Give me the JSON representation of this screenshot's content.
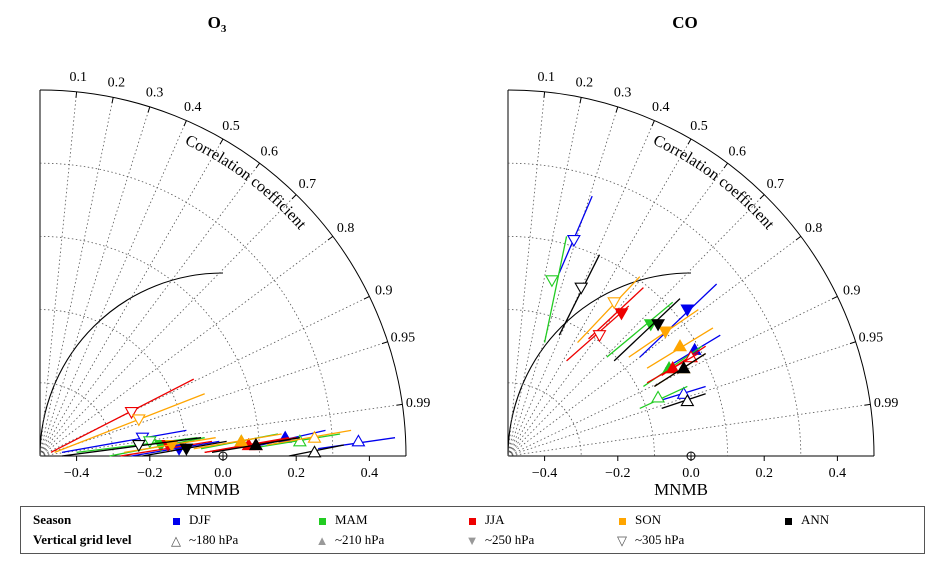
{
  "chart_data": [
    {
      "type": "scatter",
      "title": "O3",
      "xlabel": "MNMB",
      "arc_label": "Correlation coefficient",
      "xlim": [
        -0.5,
        0.5
      ],
      "x_ticks": [
        -0.4,
        -0.2,
        0.0,
        0.2,
        0.4
      ],
      "x_tick_labels": [
        "−0.4",
        "−0.2",
        "0.0",
        "0.2",
        "0.4"
      ],
      "correlation_ticks": [
        0.1,
        0.2,
        0.3,
        0.4,
        0.5,
        0.6,
        0.7,
        0.8,
        0.9,
        0.95,
        0.99
      ],
      "correlation_tick_labels": [
        "0.1",
        "0.2",
        "0.3",
        "0.4",
        "0.5",
        "0.6",
        "0.7",
        "0.8",
        "0.9",
        "0.95",
        "0.99"
      ],
      "reference_arc_radius": 0.5,
      "points": [
        {
          "season": "DJF",
          "level": "~180 hPa",
          "x": 0.37,
          "y": 0.04,
          "seg": [
            [
              0.26,
              0.02
            ],
            [
              0.47,
              0.05
            ]
          ]
        },
        {
          "season": "DJF",
          "level": "~210 hPa",
          "x": 0.17,
          "y": 0.05,
          "seg": [
            [
              0.06,
              0.02
            ],
            [
              0.28,
              0.07
            ]
          ]
        },
        {
          "season": "DJF",
          "level": "~250 hPa",
          "x": -0.12,
          "y": 0.02,
          "seg": [
            [
              -0.25,
              0.0
            ],
            [
              -0.01,
              0.04
            ]
          ]
        },
        {
          "season": "DJF",
          "level": "~305 hPa",
          "x": -0.22,
          "y": 0.05,
          "seg": [
            [
              -0.44,
              0.01
            ],
            [
              -0.1,
              0.07
            ]
          ]
        },
        {
          "season": "MAM",
          "level": "~180 hPa",
          "x": 0.21,
          "y": 0.04,
          "seg": [
            [
              0.07,
              0.02
            ],
            [
              0.32,
              0.06
            ]
          ]
        },
        {
          "season": "MAM",
          "level": "~210 hPa",
          "x": 0.05,
          "y": 0.04,
          "seg": [
            [
              -0.06,
              0.02
            ],
            [
              0.15,
              0.06
            ]
          ]
        },
        {
          "season": "MAM",
          "level": "~250 hPa",
          "x": -0.17,
          "y": 0.03,
          "seg": [
            [
              -0.31,
              0.0
            ],
            [
              -0.05,
              0.05
            ]
          ]
        },
        {
          "season": "MAM",
          "level": "~305 hPa",
          "x": -0.2,
          "y": 0.04,
          "seg": [
            [
              -0.4,
              0.01
            ],
            [
              -0.07,
              0.05
            ]
          ]
        },
        {
          "season": "JJA",
          "level": "~180 hPa",
          "x": 0.09,
          "y": 0.03,
          "seg": [
            [
              -0.05,
              0.01
            ],
            [
              0.2,
              0.05
            ]
          ]
        },
        {
          "season": "JJA",
          "level": "~210 hPa",
          "x": 0.07,
          "y": 0.03,
          "seg": [
            [
              -0.05,
              0.01
            ],
            [
              0.18,
              0.05
            ]
          ]
        },
        {
          "season": "JJA",
          "level": "~250 hPa",
          "x": -0.15,
          "y": 0.03,
          "seg": [
            [
              -0.28,
              0.0
            ],
            [
              -0.03,
              0.04
            ]
          ]
        },
        {
          "season": "JJA",
          "level": "~305 hPa",
          "x": -0.25,
          "y": 0.12,
          "seg": [
            [
              -0.47,
              0.01
            ],
            [
              -0.08,
              0.21
            ]
          ]
        },
        {
          "season": "SON",
          "level": "~180 hPa",
          "x": 0.25,
          "y": 0.05,
          "seg": [
            [
              0.12,
              0.03
            ],
            [
              0.35,
              0.07
            ]
          ]
        },
        {
          "season": "SON",
          "level": "~210 hPa",
          "x": 0.05,
          "y": 0.04,
          "seg": [
            [
              -0.08,
              0.02
            ],
            [
              0.16,
              0.06
            ]
          ]
        },
        {
          "season": "SON",
          "level": "~250 hPa",
          "x": -0.14,
          "y": 0.03,
          "seg": [
            [
              -0.27,
              0.01
            ],
            [
              -0.02,
              0.05
            ]
          ]
        },
        {
          "season": "SON",
          "level": "~305 hPa",
          "x": -0.23,
          "y": 0.1,
          "seg": [
            [
              -0.46,
              0.01
            ],
            [
              -0.05,
              0.17
            ]
          ]
        },
        {
          "season": "ANN",
          "level": "~180 hPa",
          "x": 0.25,
          "y": 0.01,
          "seg": [
            [
              0.18,
              0.0
            ],
            [
              0.33,
              0.03
            ]
          ]
        },
        {
          "season": "ANN",
          "level": "~210 hPa",
          "x": 0.09,
          "y": 0.03,
          "seg": [
            [
              -0.03,
              0.01
            ],
            [
              0.21,
              0.05
            ]
          ]
        },
        {
          "season": "ANN",
          "level": "~250 hPa",
          "x": -0.1,
          "y": 0.02,
          "seg": [
            [
              -0.22,
              0.0
            ],
            [
              0.01,
              0.04
            ]
          ]
        },
        {
          "season": "ANN",
          "level": "~305 hPa",
          "x": -0.23,
          "y": 0.03,
          "seg": [
            [
              -0.44,
              0.0
            ],
            [
              -0.06,
              0.05
            ]
          ]
        }
      ]
    },
    {
      "type": "scatter",
      "title": "CO",
      "xlabel": "MNMB",
      "arc_label": "Correlation coefficient",
      "xlim": [
        -0.5,
        0.5
      ],
      "x_ticks": [
        -0.4,
        -0.2,
        0.0,
        0.2,
        0.4
      ],
      "x_tick_labels": [
        "−0.4",
        "−0.2",
        "0.0",
        "0.2",
        "0.4"
      ],
      "correlation_ticks": [
        0.1,
        0.2,
        0.3,
        0.4,
        0.5,
        0.6,
        0.7,
        0.8,
        0.9,
        0.95,
        0.99
      ],
      "correlation_tick_labels": [
        "0.1",
        "0.2",
        "0.3",
        "0.4",
        "0.5",
        "0.6",
        "0.7",
        "0.8",
        "0.9",
        "0.95",
        "0.99"
      ],
      "reference_arc_radius": 0.5,
      "points": [
        {
          "season": "DJF",
          "level": "~180 hPa",
          "x": -0.02,
          "y": 0.17,
          "seg": [
            [
              -0.09,
              0.15
            ],
            [
              0.04,
              0.19
            ]
          ]
        },
        {
          "season": "DJF",
          "level": "~210 hPa",
          "x": 0.01,
          "y": 0.29,
          "seg": [
            [
              -0.07,
              0.24
            ],
            [
              0.08,
              0.33
            ]
          ]
        },
        {
          "season": "DJF",
          "level": "~250 hPa",
          "x": -0.01,
          "y": 0.4,
          "seg": [
            [
              -0.14,
              0.27
            ],
            [
              0.07,
              0.47
            ]
          ]
        },
        {
          "season": "DJF",
          "level": "~305 hPa",
          "x": -0.32,
          "y": 0.59,
          "seg": [
            [
              -0.36,
              0.5
            ],
            [
              -0.27,
              0.71
            ]
          ]
        },
        {
          "season": "MAM",
          "level": "~180 hPa",
          "x": -0.09,
          "y": 0.16,
          "seg": [
            [
              -0.14,
              0.13
            ],
            [
              -0.01,
              0.19
            ]
          ]
        },
        {
          "season": "MAM",
          "level": "~210 hPa",
          "x": -0.06,
          "y": 0.24,
          "seg": [
            [
              -0.13,
              0.19
            ],
            [
              0.03,
              0.3
            ]
          ]
        },
        {
          "season": "MAM",
          "level": "~250 hPa",
          "x": -0.11,
          "y": 0.36,
          "seg": [
            [
              -0.23,
              0.27
            ],
            [
              -0.05,
              0.42
            ]
          ]
        },
        {
          "season": "MAM",
          "level": "~305 hPa",
          "x": -0.38,
          "y": 0.48,
          "seg": [
            [
              -0.4,
              0.31
            ],
            [
              -0.34,
              0.6
            ]
          ]
        },
        {
          "season": "JJA",
          "level": "~180 hPa",
          "x": 0.0,
          "y": 0.27,
          "seg": [
            [
              -0.08,
              0.22
            ],
            [
              0.04,
              0.3
            ]
          ]
        },
        {
          "season": "JJA",
          "level": "~210 hPa",
          "x": -0.05,
          "y": 0.24,
          "seg": [
            [
              -0.12,
              0.2
            ],
            [
              0.02,
              0.28
            ]
          ]
        },
        {
          "season": "JJA",
          "level": "~250 hPa",
          "x": -0.19,
          "y": 0.39,
          "seg": [
            [
              -0.28,
              0.32
            ],
            [
              -0.13,
              0.46
            ]
          ]
        },
        {
          "season": "JJA",
          "level": "~305 hPa",
          "x": -0.25,
          "y": 0.33,
          "seg": [
            [
              -0.34,
              0.26
            ],
            [
              -0.17,
              0.41
            ]
          ]
        },
        {
          "season": "SON",
          "level": "~180 hPa",
          "x": -0.02,
          "y": 0.24,
          "seg": [
            [
              -0.1,
              0.19
            ],
            [
              0.04,
              0.28
            ]
          ]
        },
        {
          "season": "SON",
          "level": "~210 hPa",
          "x": -0.03,
          "y": 0.3,
          "seg": [
            [
              -0.12,
              0.24
            ],
            [
              0.06,
              0.35
            ]
          ]
        },
        {
          "season": "SON",
          "level": "~250 hPa",
          "x": -0.07,
          "y": 0.34,
          "seg": [
            [
              -0.17,
              0.27
            ],
            [
              0.02,
              0.4
            ]
          ]
        },
        {
          "season": "SON",
          "level": "~305 hPa",
          "x": -0.21,
          "y": 0.42,
          "seg": [
            [
              -0.31,
              0.31
            ],
            [
              -0.14,
              0.49
            ]
          ]
        },
        {
          "season": "ANN",
          "level": "~180 hPa",
          "x": -0.01,
          "y": 0.15,
          "seg": [
            [
              -0.08,
              0.13
            ],
            [
              0.04,
              0.17
            ]
          ]
        },
        {
          "season": "ANN",
          "level": "~210 hPa",
          "x": -0.02,
          "y": 0.24,
          "seg": [
            [
              -0.1,
              0.19
            ],
            [
              0.04,
              0.28
            ]
          ]
        },
        {
          "season": "ANN",
          "level": "~250 hPa",
          "x": -0.09,
          "y": 0.36,
          "seg": [
            [
              -0.21,
              0.26
            ],
            [
              -0.03,
              0.43
            ]
          ]
        },
        {
          "season": "ANN",
          "level": "~305 hPa",
          "x": -0.3,
          "y": 0.46,
          "seg": [
            [
              -0.36,
              0.33
            ],
            [
              -0.25,
              0.55
            ]
          ]
        }
      ]
    }
  ],
  "colors": {
    "DJF": "#0000ee",
    "MAM": "#22cc22",
    "JJA": "#ee0000",
    "SON": "#ffa500",
    "ANN": "#000000",
    "grid": "#555555",
    "axis": "#000000"
  },
  "level_markers": {
    "~180 hPa": "open-up-triangle",
    "~210 hPa": "filled-up-triangle",
    "~250 hPa": "filled-down-triangle",
    "~305 hPa": "open-down-triangle"
  },
  "legend": {
    "season_heading": "Season",
    "level_heading": "Vertical grid level",
    "seasons": [
      "DJF",
      "MAM",
      "JJA",
      "SON",
      "ANN"
    ],
    "levels": [
      "~180 hPa",
      "~210 hPa",
      "~250 hPa",
      "~305 hPa"
    ]
  }
}
